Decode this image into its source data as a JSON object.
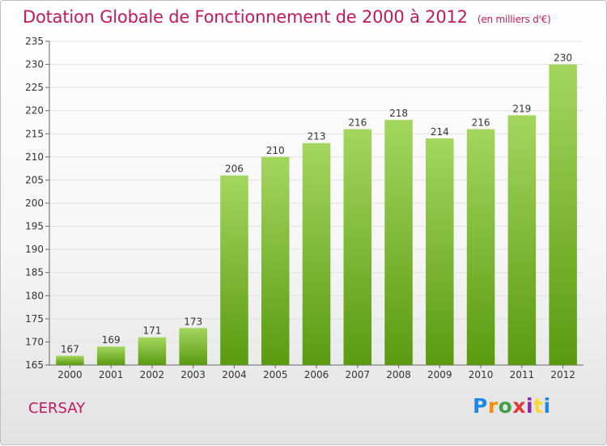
{
  "title": "Dotation Globale de Fonctionnement de 2000 à 2012",
  "unit": "(en milliers d'€)",
  "commune": "CERSAY",
  "logo": {
    "letters": [
      "P",
      "r",
      "o",
      "x",
      "i",
      "t",
      "i"
    ],
    "colors": [
      "#1e88e5",
      "#fb8c00",
      "#43a047",
      "#e53935",
      "#8e24aa",
      "#fdd835",
      "#1e88e5"
    ]
  },
  "colors": {
    "bar_top": "#a4d65e",
    "bar_bottom": "#5a9a10",
    "title": "#c2185b",
    "grid": "#e0e0e0"
  },
  "chart_data": {
    "type": "bar",
    "categories": [
      "2000",
      "2001",
      "2002",
      "2003",
      "2004",
      "2005",
      "2006",
      "2007",
      "2008",
      "2009",
      "2010",
      "2011",
      "2012"
    ],
    "values": [
      167,
      169,
      171,
      173,
      206,
      210,
      213,
      216,
      218,
      214,
      216,
      219,
      230
    ],
    "ylim": [
      165,
      235
    ],
    "yticks": [
      165,
      170,
      175,
      180,
      185,
      190,
      195,
      200,
      205,
      210,
      215,
      220,
      225,
      230,
      235
    ],
    "grid": true,
    "title": "Dotation Globale de Fonctionnement de 2000 à 2012",
    "ylabel": "(en milliers d'€)",
    "xlabel": ""
  }
}
